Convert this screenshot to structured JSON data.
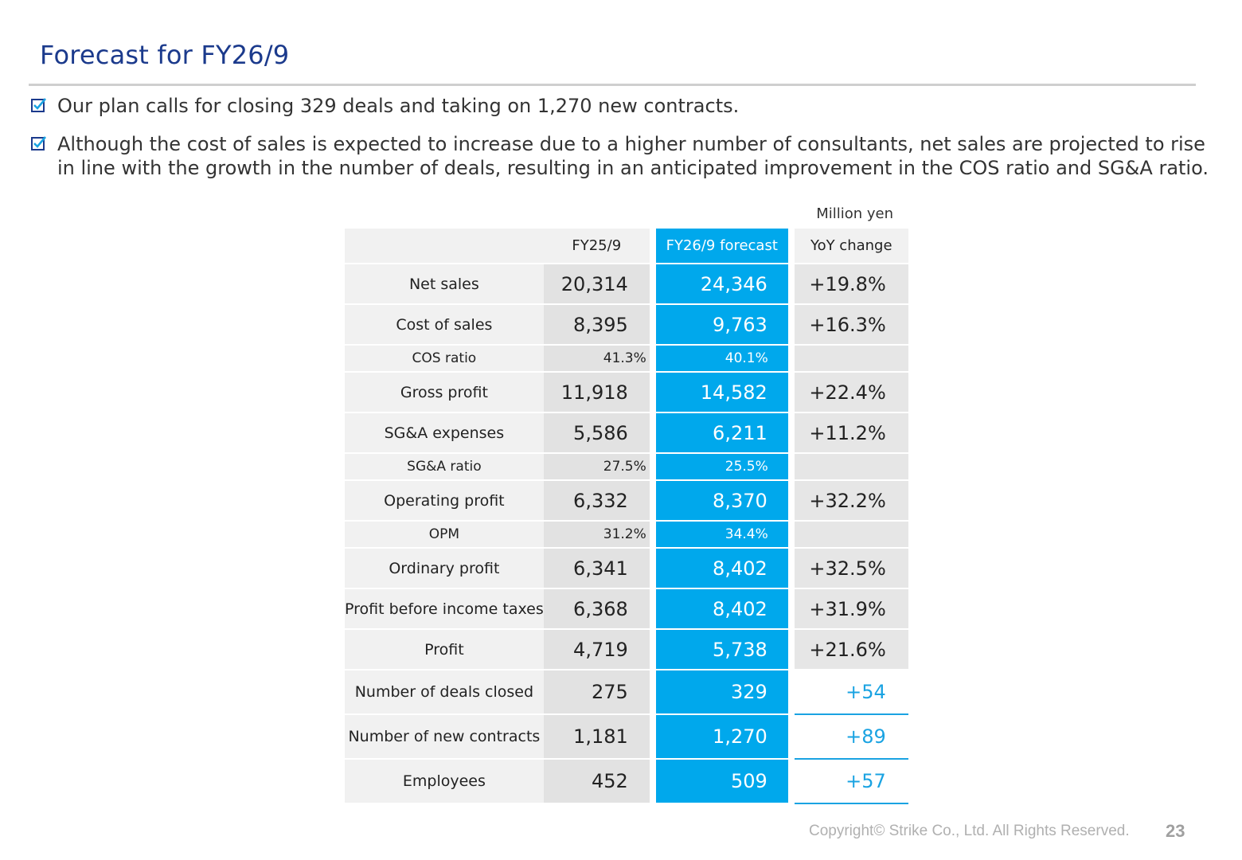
{
  "title": "Forecast for FY26/9",
  "bullets": [
    "Our plan calls for closing 329 deals and taking on 1,270 new contracts.",
    "Although the cost of sales is expected to increase due to a higher number of consultants, net sales are projected to rise in line with the growth in the number of deals, resulting in an anticipated improvement in the COS ratio and SG&A ratio."
  ],
  "unit": "Million yen",
  "table": {
    "headers": {
      "label": "",
      "prev": "FY25/9",
      "forecast": "FY26/9 forecast",
      "yoy": "YoY change"
    },
    "rows": [
      {
        "label": "Net sales",
        "prev": "20,314",
        "forecast": "24,346",
        "yoy": "+19.8%",
        "kind": "big"
      },
      {
        "label": "Cost of sales",
        "prev": "8,395",
        "forecast": "9,763",
        "yoy": "+16.3%",
        "kind": "big"
      },
      {
        "label": "COS ratio",
        "prev": "41.3%",
        "forecast": "40.1%",
        "yoy": "",
        "kind": "sml"
      },
      {
        "label": "Gross profit",
        "prev": "11,918",
        "forecast": "14,582",
        "yoy": "+22.4%",
        "kind": "big"
      },
      {
        "label": "SG&A expenses",
        "prev": "5,586",
        "forecast": "6,211",
        "yoy": "+11.2%",
        "kind": "big"
      },
      {
        "label": "SG&A ratio",
        "prev": "27.5%",
        "forecast": "25.5%",
        "yoy": "",
        "kind": "sml"
      },
      {
        "label": "Operating profit",
        "prev": "6,332",
        "forecast": "8,370",
        "yoy": "+32.2%",
        "kind": "big"
      },
      {
        "label": "OPM",
        "prev": "31.2%",
        "forecast": "34.4%",
        "yoy": "",
        "kind": "sml"
      },
      {
        "label": "Ordinary profit",
        "prev": "6,341",
        "forecast": "8,402",
        "yoy": "+32.5%",
        "kind": "big"
      },
      {
        "label": "Profit before income taxes",
        "prev": "6,368",
        "forecast": "8,402",
        "yoy": "+31.9%",
        "kind": "big"
      },
      {
        "label": "Profit",
        "prev": "4,719",
        "forecast": "5,738",
        "yoy": "+21.6%",
        "kind": "big"
      },
      {
        "label": "Number of deals closed",
        "prev": "275",
        "forecast": "329",
        "yoy": "+54",
        "kind": "cnt"
      },
      {
        "label": "Number of new contracts",
        "prev": "1,181",
        "forecast": "1,270",
        "yoy": "+89",
        "kind": "cnt"
      },
      {
        "label": "Employees",
        "prev": "452",
        "forecast": "509",
        "yoy": "+57",
        "kind": "cnt"
      }
    ]
  },
  "footer": {
    "copyright": "Copyright© Strike Co., Ltd. All Rights Reserved.",
    "page": "23"
  },
  "colors": {
    "title": "#1b3a8c",
    "forecast_col": "#00a8ec",
    "accent": "#1aa3e2"
  },
  "icons": {
    "bullet": "checkbox-icon"
  }
}
